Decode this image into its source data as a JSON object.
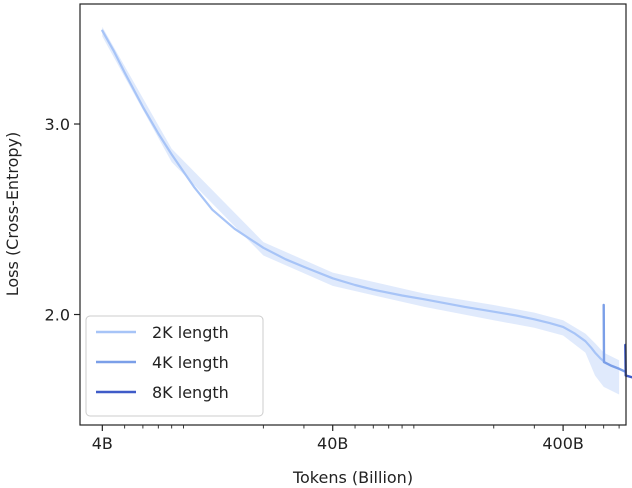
{
  "chart_data": {
    "type": "line",
    "xlabel": "Tokens (Billion)",
    "ylabel": "Loss (Cross-Entropy)",
    "xscale": "log",
    "xlim": [
      3.2,
      750
    ],
    "ylim": [
      1.42,
      3.63
    ],
    "x_ticks": [
      {
        "value": 4,
        "label": "4B"
      },
      {
        "value": 40,
        "label": "40B"
      },
      {
        "value": 400,
        "label": "400B"
      }
    ],
    "y_ticks": [
      {
        "value": 2.0,
        "label": "2.0"
      },
      {
        "value": 3.0,
        "label": "3.0"
      }
    ],
    "grid": false,
    "legend_position": "lower-left",
    "series": [
      {
        "name": "2K length",
        "color": "#a7c4f7",
        "points": [
          [
            4,
            3.49
          ],
          [
            4.5,
            3.38
          ],
          [
            5,
            3.27
          ],
          [
            6,
            3.09
          ],
          [
            7,
            2.95
          ],
          [
            8,
            2.84
          ],
          [
            10,
            2.67
          ],
          [
            12,
            2.55
          ],
          [
            15,
            2.45
          ],
          [
            20,
            2.35
          ],
          [
            25,
            2.29
          ],
          [
            30,
            2.25
          ],
          [
            40,
            2.19
          ],
          [
            50,
            2.155
          ],
          [
            60,
            2.13
          ],
          [
            80,
            2.1
          ],
          [
            100,
            2.08
          ],
          [
            150,
            2.04
          ],
          [
            200,
            2.015
          ],
          [
            250,
            1.995
          ],
          [
            300,
            1.975
          ],
          [
            350,
            1.955
          ],
          [
            400,
            1.935
          ],
          [
            450,
            1.9
          ],
          [
            500,
            1.86
          ],
          [
            530,
            1.825
          ],
          [
            550,
            1.8
          ],
          [
            580,
            1.77
          ],
          [
            600,
            1.755
          ]
        ],
        "band": [
          [
            4,
            3.46,
            3.51
          ],
          [
            8,
            2.8,
            2.87
          ],
          [
            20,
            2.31,
            2.38
          ],
          [
            40,
            2.15,
            2.22
          ],
          [
            100,
            2.04,
            2.11
          ],
          [
            200,
            1.97,
            2.05
          ],
          [
            300,
            1.93,
            2.01
          ],
          [
            400,
            1.89,
            1.97
          ],
          [
            500,
            1.8,
            1.9
          ],
          [
            550,
            1.68,
            1.85
          ],
          [
            600,
            1.62,
            1.8
          ],
          [
            700,
            1.58,
            1.76
          ]
        ]
      },
      {
        "name": "4K length",
        "color": "#7b9fe8",
        "points": [
          [
            600,
            2.05
          ],
          [
            602,
            1.75
          ],
          [
            650,
            1.73
          ],
          [
            700,
            1.715
          ],
          [
            745,
            1.7
          ]
        ]
      },
      {
        "name": "8K length",
        "color": "#3f5bc8",
        "points": [
          [
            745,
            1.84
          ],
          [
            748,
            1.68
          ],
          [
            800,
            1.67
          ],
          [
            815,
            1.665
          ]
        ]
      }
    ],
    "legend": [
      "2K length",
      "4K length",
      "8K length"
    ]
  }
}
